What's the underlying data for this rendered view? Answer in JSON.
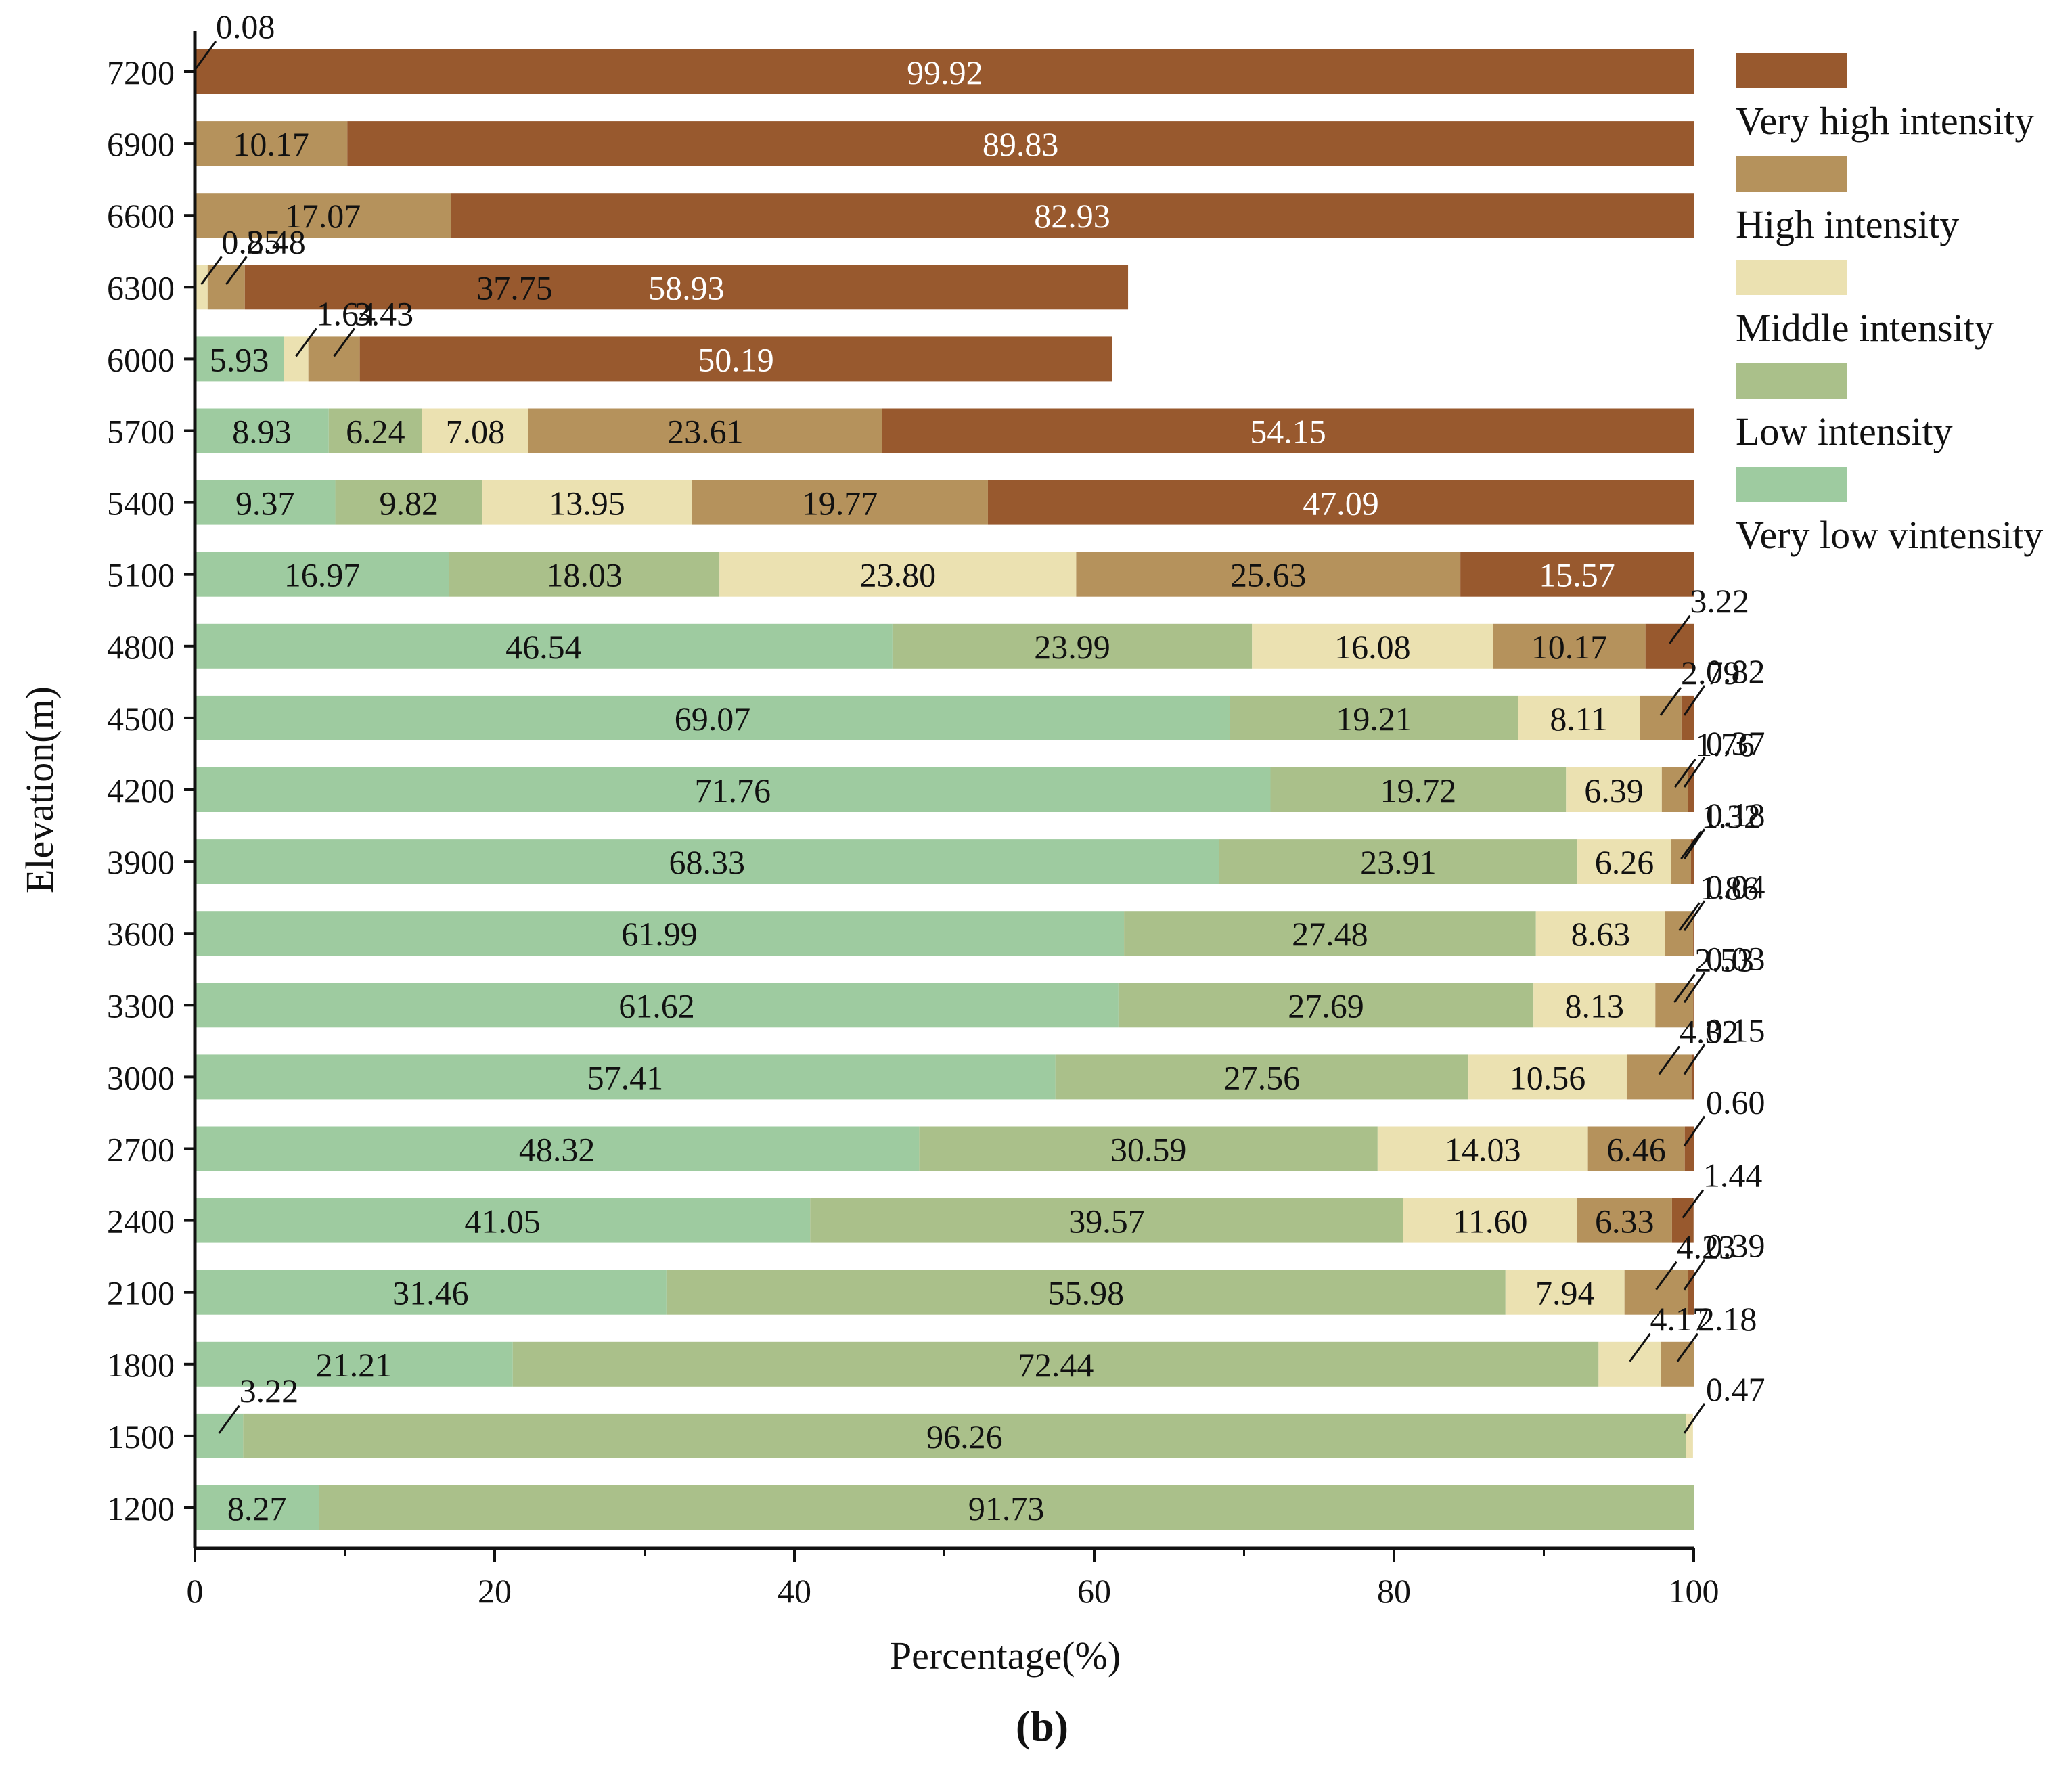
{
  "chart_data": {
    "type": "bar",
    "orientation": "horizontal",
    "stacked": true,
    "caption": "(b)",
    "xlabel": "Percentage(%)",
    "ylabel": "Elevation(m)",
    "xlim": [
      0,
      100
    ],
    "xticks": [
      "0",
      "20",
      "40",
      "60",
      "80",
      "100"
    ],
    "categories": [
      "7200",
      "6900",
      "6600",
      "6300",
      "6000",
      "5700",
      "5400",
      "5100",
      "4800",
      "4500",
      "4200",
      "3900",
      "3600",
      "3300",
      "3000",
      "2700",
      "2400",
      "2100",
      "1800",
      "1500",
      "1200"
    ],
    "series": [
      {
        "name": "Very low vintensity",
        "color": "#9ECBA0",
        "values": [
          0,
          0,
          0,
          0,
          5.93,
          8.93,
          9.37,
          16.97,
          46.54,
          69.07,
          71.76,
          68.33,
          61.99,
          61.62,
          57.41,
          48.32,
          41.05,
          31.46,
          21.21,
          3.22,
          8.27
        ],
        "labels": [
          null,
          null,
          null,
          null,
          "5.93",
          "8.93",
          "9.37",
          "16.97",
          "46.54",
          "69.07",
          "71.76",
          "68.33",
          "61.99",
          "61.62",
          "57.41",
          "48.32",
          "41.05",
          "31.46",
          "21.21",
          "3.22",
          "8.27"
        ]
      },
      {
        "name": "Low intensity",
        "color": "#AAC08A",
        "values": [
          0,
          0,
          0,
          0,
          0,
          6.24,
          9.82,
          18.03,
          23.99,
          19.21,
          19.72,
          23.91,
          27.48,
          27.69,
          27.56,
          30.59,
          39.57,
          55.98,
          72.44,
          96.26,
          91.73
        ],
        "labels": [
          null,
          null,
          null,
          null,
          null,
          "6.24",
          "9.82",
          "18.03",
          "23.99",
          "19.21",
          "19.72",
          "23.91",
          "27.48",
          "27.69",
          "27.56",
          "30.59",
          "39.57",
          "55.98",
          "72.44",
          "96.26",
          "91.73"
        ]
      },
      {
        "name": "Middle intensity",
        "color": "#EBE1B1",
        "values": [
          0,
          0,
          0,
          0.85,
          1.64,
          7.08,
          13.95,
          23.8,
          16.08,
          8.11,
          6.39,
          6.26,
          8.63,
          8.13,
          10.56,
          14.03,
          11.6,
          7.94,
          4.17,
          0.47,
          0
        ],
        "labels": [
          null,
          null,
          null,
          "0.85",
          "1.64",
          "7.08",
          "13.95",
          "23.80",
          "16.08",
          "8.11",
          "6.39",
          "6.26",
          "8.63",
          "8.13",
          "10.56",
          "14.03",
          "11.60",
          "7.94",
          "4.17",
          "0.47",
          null
        ]
      },
      {
        "name": "High intensity",
        "color": "#B5925C",
        "values": [
          0.08,
          10.17,
          17.07,
          2.48,
          3.43,
          23.61,
          19.77,
          25.63,
          10.17,
          2.79,
          1.76,
          1.32,
          1.86,
          2.53,
          4.32,
          6.46,
          6.33,
          4.23,
          2.18,
          0,
          0
        ],
        "labels": [
          "0.08",
          "10.17",
          "17.07",
          "2.48",
          "3.43",
          "23.61",
          "19.77",
          "25.63",
          "10.17",
          "2.79",
          "1.76",
          "1.32",
          "1.86",
          "2.53",
          "4.32",
          "6.46",
          "6.33",
          "4.23",
          "2.18",
          null,
          null
        ]
      },
      {
        "name": "Very high intensity",
        "color": "#98592E",
        "values": [
          99.92,
          89.83,
          82.93,
          58.93,
          50.19,
          54.15,
          47.09,
          15.57,
          3.22,
          0.82,
          0.37,
          0.18,
          0.04,
          0.03,
          0.15,
          0.6,
          1.44,
          0.39,
          0,
          0,
          0
        ],
        "labels": [
          "99.92",
          "89.83",
          "82.93",
          "58.93",
          "50.19",
          "54.15",
          "47.09",
          "15.57",
          "3.22",
          "0.82",
          "0.37",
          "0.18",
          "0.04",
          "0.03",
          "0.15",
          "0.60",
          "1.44",
          "0.39",
          null,
          null,
          null
        ]
      }
    ],
    "extra_labels": [
      {
        "category": "6300",
        "series": "High intensity",
        "text": "37.75"
      }
    ],
    "legend": {
      "placement": "right",
      "order": [
        "Very high intensity",
        "High intensity",
        "Middle intensity",
        "Low intensity",
        "Very low vintensity"
      ]
    }
  }
}
